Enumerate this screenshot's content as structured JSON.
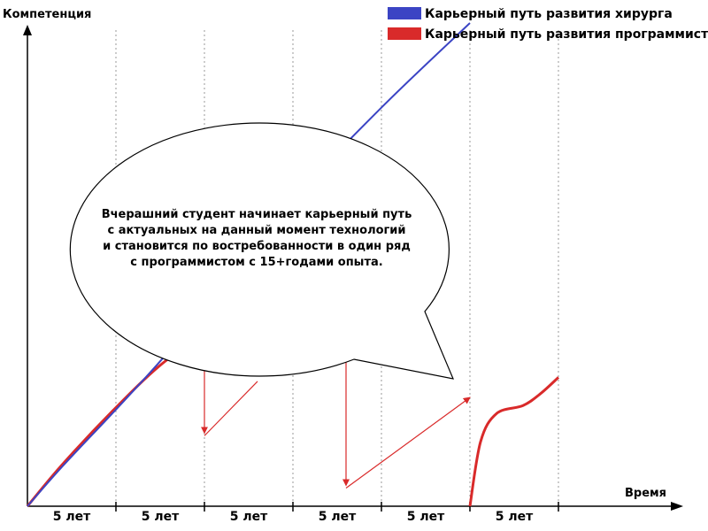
{
  "chart_data": {
    "type": "line",
    "ylabel": "Компетенция",
    "xlabel": "Время",
    "categories": [
      "5 лет",
      "5 лет",
      "5 лет",
      "5 лет",
      "5 лет",
      "5 лет"
    ],
    "xlim": [
      0,
      30
    ],
    "ylim": [
      0,
      10
    ],
    "grid": "vertical-dotted",
    "legend_position": "top-right",
    "series": [
      {
        "name": "Карьерный путь развития хирурга",
        "color": "#3b44c4",
        "points": [
          [
            0,
            0
          ],
          [
            2,
            1.0
          ],
          [
            5,
            2.4
          ],
          [
            7.5,
            3.6
          ],
          [
            10,
            4.9
          ],
          [
            15,
            7.6
          ],
          [
            20,
            9.9
          ],
          [
            25,
            12.0
          ]
        ]
      },
      {
        "name": "Карьерный путь развития программиста",
        "color": "#d92a2a",
        "segments": [
          [
            [
              0,
              0
            ],
            [
              2,
              1.05
            ],
            [
              5,
              2.45
            ],
            [
              7.5,
              3.5
            ],
            [
              10,
              4.3
            ]
          ],
          [
            [
              10,
              1.75
            ],
            [
              13,
              3.1
            ]
          ],
          [
            [
              18,
              0.45
            ],
            [
              25,
              2.7
            ]
          ],
          [
            [
              25,
              0
            ],
            [
              25.6,
              1.6
            ],
            [
              26.5,
              2.3
            ],
            [
              28,
              2.5
            ],
            [
              29,
              2.8
            ],
            [
              30,
              3.2
            ]
          ]
        ],
        "drops": [
          [
            10,
            4.3,
            1.75
          ],
          [
            18,
            4.0,
            0.45
          ]
        ]
      }
    ],
    "annotation": {
      "lines": [
        "Вчерашний студент начинает карьерный путь",
        "с актуальных на данный момент технологий",
        "и становится по востребованности в один ряд",
        "с программистом с 15+годами опыта."
      ]
    }
  }
}
